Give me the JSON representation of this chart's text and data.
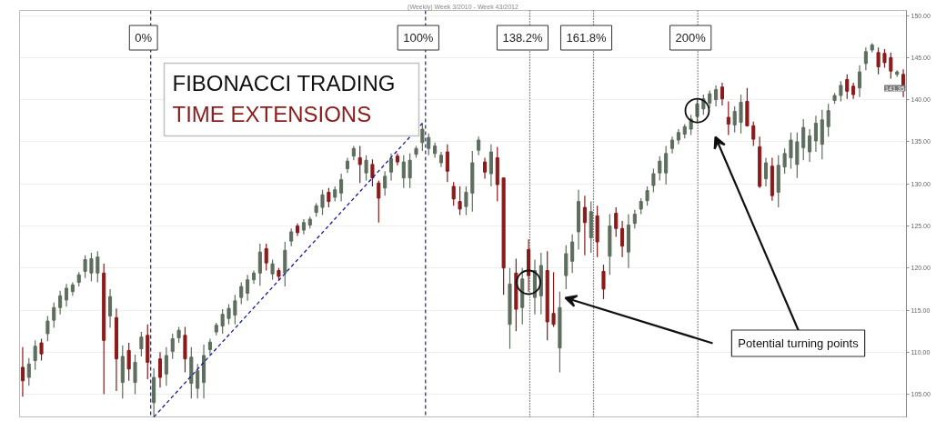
{
  "chart_data": {
    "type": "candlestick",
    "title": "(Weekly) Week 3/2010 - Week 43/2012",
    "annotations": [
      "0%",
      "100%",
      "138.2%",
      "161.8%",
      "200%",
      "FIBONACCI TRADING",
      "TIME EXTENSIONS",
      "Potential turning points",
      "141.35"
    ],
    "categories": [
      null,
      null,
      null,
      null,
      null,
      null,
      null,
      null,
      null,
      null,
      null,
      null,
      null,
      null,
      null,
      null,
      null,
      null,
      null,
      null,
      null,
      null,
      null,
      null,
      null,
      null,
      null,
      null,
      null,
      null,
      null,
      null,
      null,
      null,
      null,
      null,
      null,
      null,
      null,
      null,
      null,
      null,
      null,
      null,
      null,
      null,
      null,
      null,
      null,
      null,
      null,
      null,
      null,
      null,
      null,
      null,
      null,
      null,
      null,
      null,
      null,
      null,
      null,
      null,
      null,
      null,
      null,
      null,
      null,
      null,
      null,
      null,
      null,
      null,
      null,
      null,
      null,
      null,
      null,
      null,
      null,
      null,
      null,
      null,
      null,
      null,
      null,
      null,
      null,
      null,
      null,
      null,
      null,
      null,
      null,
      null,
      null,
      null,
      null,
      null,
      null,
      null,
      null,
      null,
      null,
      null,
      null,
      null,
      null,
      null,
      null,
      null,
      null,
      null,
      null,
      null,
      null,
      null,
      null,
      null,
      null,
      null,
      null,
      null,
      null,
      null,
      null,
      null,
      null,
      null,
      null,
      null,
      null,
      null,
      null,
      null,
      null,
      null,
      null,
      null,
      null,
      null
    ],
    "ohlc": [
      [
        108.2,
        110.6,
        104.7,
        106.6
      ],
      [
        107.0,
        109.3,
        106.0,
        108.6
      ],
      [
        109.0,
        111.4,
        107.9,
        110.7
      ],
      [
        111.1,
        111.6,
        109.0,
        109.8
      ],
      [
        112.2,
        114.3,
        111.3,
        113.7
      ],
      [
        113.8,
        115.9,
        112.9,
        115.3
      ],
      [
        115.3,
        117.3,
        114.5,
        116.7
      ],
      [
        116.2,
        118.1,
        115.4,
        117.6
      ],
      [
        117.2,
        118.3,
        116.7,
        118.0
      ],
      [
        118.3,
        119.5,
        117.8,
        119.2
      ],
      [
        119.6,
        121.5,
        118.8,
        121.0
      ],
      [
        119.4,
        121.8,
        118.4,
        121.1
      ],
      [
        119.4,
        122.0,
        118.3,
        121.3
      ],
      [
        119.4,
        120.5,
        105.0,
        111.4
      ],
      [
        114.3,
        117.5,
        112.9,
        116.6
      ],
      [
        114.1,
        115.2,
        105.4,
        109.2
      ],
      [
        106.4,
        110.8,
        104.5,
        109.5
      ],
      [
        110.2,
        111.1,
        106.6,
        108.0
      ],
      [
        106.4,
        109.7,
        105.0,
        108.8
      ],
      [
        110.4,
        112.4,
        109.5,
        111.8
      ],
      [
        112.0,
        113.3,
        106.8,
        108.8
      ],
      [
        104.0,
        108.1,
        102.3,
        107.0
      ],
      [
        109.2,
        110.0,
        105.8,
        107.0
      ],
      [
        107.4,
        110.6,
        106.0,
        109.6
      ],
      [
        110.1,
        112.2,
        109.2,
        111.6
      ],
      [
        111.7,
        113.0,
        111.1,
        112.6
      ],
      [
        112.0,
        113.0,
        107.6,
        109.2
      ],
      [
        106.3,
        110.6,
        104.5,
        109.4
      ],
      [
        105.7,
        108.6,
        104.5,
        107.8
      ],
      [
        106.4,
        110.9,
        104.5,
        109.6
      ],
      [
        110.3,
        111.6,
        109.7,
        111.2
      ],
      [
        112.4,
        113.5,
        112.0,
        113.2
      ],
      [
        113.1,
        115.1,
        112.2,
        114.5
      ],
      [
        114.0,
        115.7,
        113.3,
        115.2
      ],
      [
        114.4,
        116.8,
        113.3,
        116.1
      ],
      [
        116.5,
        118.3,
        115.7,
        117.8
      ],
      [
        117.0,
        119.2,
        116.1,
        118.6
      ],
      [
        118.6,
        119.7,
        118.1,
        119.4
      ],
      [
        119.4,
        122.9,
        117.9,
        121.9
      ],
      [
        122.3,
        122.9,
        119.7,
        120.6
      ],
      [
        119.3,
        121.0,
        118.6,
        120.5
      ],
      [
        119.7,
        120.0,
        118.6,
        119.0
      ],
      [
        119.4,
        123.1,
        117.8,
        122.1
      ],
      [
        123.2,
        124.7,
        122.6,
        124.3
      ],
      [
        125.0,
        125.3,
        123.8,
        124.2
      ],
      [
        124.5,
        125.8,
        124.0,
        125.4
      ],
      [
        125.1,
        126.1,
        124.7,
        125.8
      ],
      [
        126.6,
        127.7,
        126.1,
        127.4
      ],
      [
        127.2,
        129.3,
        126.3,
        128.7
      ],
      [
        129.0,
        129.5,
        127.2,
        127.9
      ],
      [
        128.4,
        129.7,
        127.9,
        129.3
      ],
      [
        128.9,
        131.2,
        127.9,
        130.5
      ],
      [
        131.8,
        133.1,
        131.3,
        132.7
      ],
      [
        133.3,
        134.5,
        132.8,
        134.2
      ],
      [
        133.1,
        134.5,
        130.1,
        132.3
      ],
      [
        131.3,
        133.4,
        130.4,
        132.8
      ],
      [
        132.3,
        132.9,
        129.7,
        130.7
      ],
      [
        130.1,
        130.4,
        125.4,
        128.3
      ],
      [
        129.5,
        131.5,
        128.6,
        130.9
      ],
      [
        131.4,
        133.6,
        130.4,
        133.0
      ],
      [
        133.3,
        133.6,
        132.2,
        132.6
      ],
      [
        130.7,
        133.4,
        129.5,
        132.6
      ],
      [
        130.7,
        133.6,
        129.5,
        132.8
      ],
      [
        133.5,
        134.5,
        133.1,
        134.2
      ],
      [
        134.9,
        137.2,
        133.9,
        136.5
      ],
      [
        134.2,
        136.0,
        133.4,
        135.5
      ],
      [
        133.6,
        134.9,
        133.1,
        134.5
      ],
      [
        132.5,
        133.8,
        132.0,
        133.4
      ],
      [
        133.8,
        134.7,
        130.2,
        131.5
      ],
      [
        129.7,
        130.2,
        127.4,
        128.2
      ],
      [
        127.9,
        129.7,
        126.3,
        127.0
      ],
      [
        127.3,
        129.7,
        126.3,
        129.0
      ],
      [
        128.9,
        133.9,
        126.7,
        132.5
      ],
      [
        134.0,
        135.6,
        133.4,
        135.2
      ],
      [
        132.6,
        133.1,
        130.6,
        131.4
      ],
      [
        131.2,
        134.7,
        129.7,
        133.8
      ],
      [
        133.1,
        134.4,
        127.9,
        129.9
      ],
      [
        130.7,
        130.7,
        116.8,
        120.0
      ],
      [
        113.3,
        120.0,
        110.4,
        118.1
      ],
      [
        119.4,
        121.1,
        112.5,
        115.1
      ],
      [
        115.3,
        120.0,
        113.3,
        118.7
      ],
      [
        122.2,
        123.4,
        117.2,
        119.1
      ],
      [
        116.5,
        121.0,
        114.5,
        119.7
      ],
      [
        116.7,
        121.8,
        114.5,
        120.3
      ],
      [
        119.7,
        122.0,
        111.4,
        113.6
      ],
      [
        114.6,
        119.5,
        113.0,
        113.3
      ],
      [
        110.5,
        117.2,
        107.6,
        115.3
      ],
      [
        119.1,
        122.7,
        117.5,
        121.7
      ],
      [
        120.8,
        124.0,
        119.4,
        123.1
      ],
      [
        124.3,
        129.3,
        122.2,
        127.9
      ],
      [
        127.2,
        128.6,
        121.5,
        125.4
      ],
      [
        123.6,
        127.9,
        121.8,
        126.7
      ],
      [
        126.2,
        127.4,
        121.3,
        123.1
      ],
      [
        119.6,
        120.4,
        116.3,
        117.5
      ],
      [
        121.4,
        126.4,
        119.2,
        125.0
      ],
      [
        126.5,
        127.2,
        123.7,
        124.7
      ],
      [
        124.7,
        125.6,
        121.3,
        122.6
      ],
      [
        121.9,
        126.4,
        120.0,
        125.1
      ],
      [
        125.3,
        126.9,
        124.7,
        126.4
      ],
      [
        127.0,
        128.3,
        126.4,
        127.9
      ],
      [
        128.0,
        129.7,
        127.4,
        129.2
      ],
      [
        129.8,
        131.8,
        129.0,
        131.2
      ],
      [
        131.3,
        133.3,
        130.4,
        132.7
      ],
      [
        131.3,
        134.5,
        129.9,
        133.6
      ],
      [
        134.2,
        135.6,
        133.6,
        135.2
      ],
      [
        135.2,
        136.5,
        134.7,
        136.1
      ],
      [
        135.9,
        137.1,
        135.4,
        136.8
      ],
      [
        136.5,
        138.2,
        135.8,
        137.7
      ],
      [
        138.0,
        140.1,
        137.2,
        139.5
      ],
      [
        138.9,
        140.6,
        138.2,
        140.1
      ],
      [
        139.6,
        141.1,
        139.0,
        140.7
      ],
      [
        140.0,
        141.7,
        139.2,
        141.2
      ],
      [
        141.5,
        142.0,
        139.3,
        140.1
      ],
      [
        137.9,
        139.8,
        135.8,
        137.1
      ],
      [
        137.0,
        139.2,
        136.1,
        138.6
      ],
      [
        137.3,
        140.6,
        136.0,
        139.7
      ],
      [
        139.8,
        141.4,
        136.8,
        136.9
      ],
      [
        136.9,
        137.4,
        134.5,
        135.3
      ],
      [
        134.4,
        135.6,
        129.5,
        129.7
      ],
      [
        130.6,
        133.1,
        129.7,
        132.5
      ],
      [
        132.1,
        133.1,
        128.0,
        128.6
      ],
      [
        129.0,
        133.4,
        127.2,
        132.2
      ],
      [
        132.0,
        134.2,
        131.2,
        133.6
      ],
      [
        133.1,
        136.1,
        131.8,
        135.2
      ],
      [
        132.3,
        136.1,
        130.7,
        135.0
      ],
      [
        134.3,
        137.7,
        132.8,
        136.7
      ],
      [
        133.8,
        136.5,
        132.6,
        135.7
      ],
      [
        135.1,
        138.1,
        133.8,
        137.2
      ],
      [
        134.7,
        138.8,
        132.9,
        137.6
      ],
      [
        136.8,
        139.5,
        135.6,
        138.7
      ],
      [
        139.9,
        140.8,
        139.5,
        140.5
      ],
      [
        140.5,
        142.2,
        139.8,
        141.7
      ],
      [
        142.4,
        143.0,
        140.1,
        141.0
      ],
      [
        141.6,
        142.0,
        140.1,
        140.6
      ],
      [
        141.4,
        144.1,
        140.3,
        143.3
      ],
      [
        144.3,
        146.2,
        143.5,
        145.7
      ],
      [
        145.9,
        146.7,
        145.6,
        146.5
      ],
      [
        145.6,
        146.2,
        143.0,
        143.9
      ],
      [
        145.5,
        146.0,
        143.8,
        144.4
      ],
      [
        145.0,
        145.6,
        142.5,
        143.4
      ],
      [
        143.0,
        143.5,
        142.7,
        143.3
      ],
      [
        143.0,
        143.6,
        140.3,
        141.35
      ]
    ],
    "colors": [
      "#8b1a1a",
      "#5e6e5e",
      "#5e6e5e",
      "#8b1a1a",
      "#5e6e5e",
      "#5e6e5e",
      "#5e6e5e",
      "#5e6e5e",
      "#5e6e5e",
      "#5e6e5e",
      "#5e6e5e",
      "#5e6e5e",
      "#5e6e5e",
      "#8b1a1a",
      "#5e6e5e",
      "#8b1a1a",
      "#5e6e5e",
      "#8b1a1a",
      "#5e6e5e",
      "#5e6e5e",
      "#8b1a1a",
      "#5e6e5e",
      "#8b1a1a",
      "#5e6e5e",
      "#5e6e5e",
      "#5e6e5e",
      "#8b1a1a",
      "#5e6e5e",
      "#5e6e5e",
      "#5e6e5e",
      "#5e6e5e",
      "#5e6e5e",
      "#5e6e5e",
      "#5e6e5e",
      "#5e6e5e",
      "#5e6e5e",
      "#5e6e5e",
      "#5e6e5e",
      "#5e6e5e",
      "#8b1a1a",
      "#5e6e5e",
      "#8b1a1a",
      "#5e6e5e",
      "#5e6e5e",
      "#8b1a1a",
      "#5e6e5e",
      "#5e6e5e",
      "#5e6e5e",
      "#5e6e5e",
      "#8b1a1a",
      "#5e6e5e",
      "#5e6e5e",
      "#5e6e5e",
      "#5e6e5e",
      "#8b1a1a",
      "#5e6e5e",
      "#8b1a1a",
      "#8b1a1a",
      "#5e6e5e",
      "#5e6e5e",
      "#8b1a1a",
      "#5e6e5e",
      "#5e6e5e",
      "#5e6e5e",
      "#5e6e5e",
      "#5e6e5e",
      "#5e6e5e",
      "#5e6e5e",
      "#8b1a1a",
      "#8b1a1a",
      "#8b1a1a",
      "#5e6e5e",
      "#5e6e5e",
      "#5e6e5e",
      "#8b1a1a",
      "#5e6e5e",
      "#8b1a1a",
      "#8b1a1a",
      "#5e6e5e",
      "#8b1a1a",
      "#5e6e5e",
      "#8b1a1a",
      "#5e6e5e",
      "#5e6e5e",
      "#8b1a1a",
      "#8b1a1a",
      "#5e6e5e",
      "#5e6e5e",
      "#5e6e5e",
      "#5e6e5e",
      "#8b1a1a",
      "#5e6e5e",
      "#8b1a1a",
      "#8b1a1a",
      "#5e6e5e",
      "#8b1a1a",
      "#8b1a1a",
      "#5e6e5e",
      "#5e6e5e",
      "#5e6e5e",
      "#5e6e5e",
      "#5e6e5e",
      "#5e6e5e",
      "#5e6e5e",
      "#5e6e5e",
      "#5e6e5e",
      "#5e6e5e",
      "#5e6e5e",
      "#5e6e5e",
      "#5e6e5e",
      "#5e6e5e",
      "#5e6e5e",
      "#8b1a1a",
      "#8b1a1a",
      "#5e6e5e",
      "#5e6e5e",
      "#8b1a1a",
      "#8b1a1a",
      "#8b1a1a",
      "#5e6e5e",
      "#8b1a1a",
      "#5e6e5e",
      "#5e6e5e",
      "#5e6e5e",
      "#5e6e5e",
      "#5e6e5e",
      "#5e6e5e",
      "#5e6e5e",
      "#5e6e5e",
      "#5e6e5e",
      "#5e6e5e",
      "#5e6e5e",
      "#8b1a1a",
      "#8b1a1a",
      "#5e6e5e",
      "#5e6e5e",
      "#5e6e5e",
      "#8b1a1a",
      "#8b1a1a",
      "#8b1a1a",
      "#5e6e5e",
      "#8b1a1a"
    ],
    "series": [
      {
        "type": "line",
        "color": "#1a1aa0",
        "line_style": "dashed",
        "values": [
          null,
          null,
          null,
          null,
          null,
          null,
          null,
          null,
          null,
          null,
          null,
          null,
          null,
          null,
          null,
          null,
          null,
          null,
          null,
          null,
          null,
          102.3,
          null,
          null,
          null,
          null,
          null,
          null,
          null,
          null,
          null,
          null,
          null,
          null,
          null,
          null,
          null,
          null,
          null,
          null,
          null,
          null,
          null,
          null,
          null,
          null,
          null,
          null,
          null,
          null,
          null,
          null,
          null,
          null,
          null,
          null,
          null,
          null,
          null,
          null,
          null,
          null,
          null,
          null,
          137.2,
          null,
          null,
          null,
          null,
          null,
          null,
          null,
          null,
          null,
          null,
          null,
          null,
          null,
          null,
          null,
          null,
          null,
          null,
          null,
          null,
          null,
          null,
          null,
          null,
          null,
          null,
          null,
          null,
          null,
          null,
          null,
          null,
          null,
          null,
          null,
          null,
          null,
          null,
          null,
          null,
          null,
          null,
          null,
          null,
          null,
          null,
          null,
          null,
          null,
          null,
          null,
          null,
          null,
          null,
          null,
          null,
          null,
          null,
          null,
          null,
          null,
          null,
          null,
          null,
          null,
          null,
          null,
          null,
          null,
          null,
          null,
          null,
          null,
          null,
          null,
          null,
          null
        ]
      },
      {
        "type": "scatter",
        "color": "#111111",
        "marker": "circle",
        "values": [
          null,
          null,
          null,
          null,
          null,
          null,
          null,
          null,
          null,
          null,
          null,
          null,
          null,
          null,
          null,
          null,
          null,
          null,
          null,
          null,
          null,
          null,
          null,
          null,
          null,
          null,
          null,
          null,
          null,
          null,
          null,
          null,
          null,
          null,
          null,
          null,
          null,
          null,
          null,
          null,
          null,
          null,
          null,
          null,
          null,
          null,
          null,
          null,
          null,
          null,
          null,
          null,
          null,
          null,
          null,
          null,
          null,
          null,
          null,
          null,
          null,
          null,
          null,
          null,
          null,
          null,
          null,
          null,
          null,
          null,
          null,
          null,
          null,
          null,
          null,
          null,
          null,
          null,
          null,
          null,
          null,
          118.3,
          null,
          null,
          null,
          null,
          null,
          null,
          null,
          null,
          null,
          null,
          null,
          null,
          null,
          null,
          null,
          null,
          null,
          null,
          null,
          null,
          null,
          null,
          null,
          null,
          null,
          null,
          138.7,
          null,
          null,
          null,
          null,
          null,
          null,
          null,
          null,
          null,
          null,
          null,
          null,
          null,
          null,
          null,
          null,
          null,
          null,
          null,
          null,
          null,
          null,
          null,
          null,
          null,
          null,
          null,
          null,
          null,
          null,
          null,
          null,
          null
        ]
      }
    ],
    "ylim": [
      102.2,
      150.6
    ],
    "yticks": [
      {
        "value": 105,
        "label": "105.00"
      },
      {
        "value": 110,
        "label": "110.00"
      },
      {
        "value": 115,
        "label": "115.00"
      },
      {
        "value": 120,
        "label": "120.00"
      },
      {
        "value": 125,
        "label": "125.00"
      },
      {
        "value": 130,
        "label": "130.00"
      },
      {
        "value": 135,
        "label": "135.00"
      },
      {
        "value": 140,
        "label": "140.00"
      },
      {
        "value": 145,
        "label": "145.00"
      },
      {
        "value": 150,
        "label": "150.00"
      }
    ],
    "grid": "y",
    "tick_labels": "y"
  }
}
